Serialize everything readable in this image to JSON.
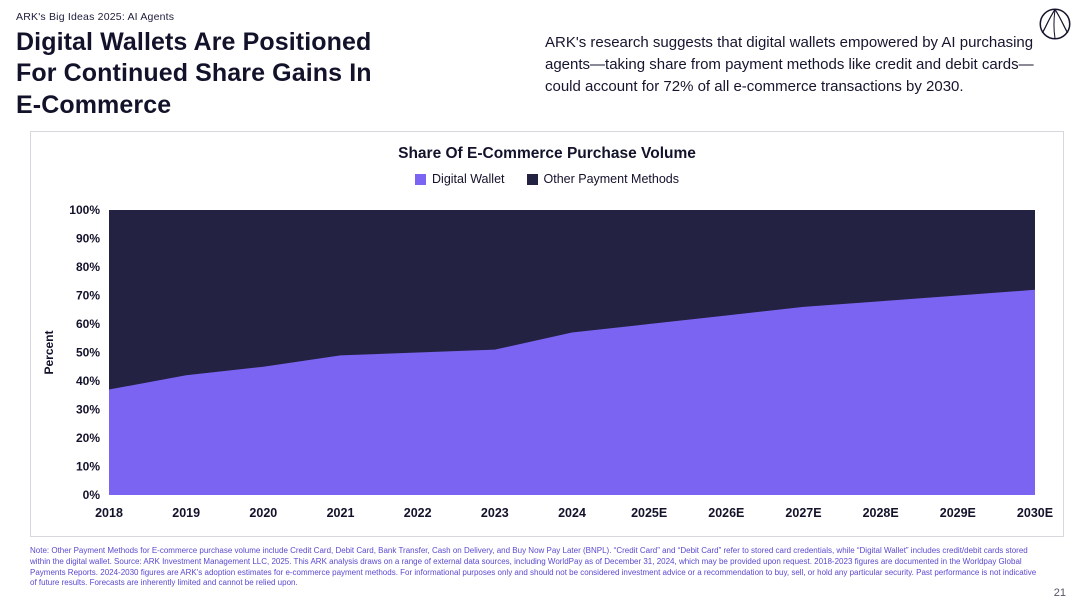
{
  "header": {
    "eyebrow": "ARK's Big Ideas 2025: AI Agents",
    "title_lines": {
      "0": "Digital Wallets Are Positioned",
      "1": "For Continued Share Gains In",
      "2": "E-Commerce"
    },
    "summary": "ARK's research suggests that digital wallets empowered by AI purchasing agents—taking share from payment methods like credit and debit cards—could account for 72% of all e-commerce transactions by 2030."
  },
  "chart_card": {
    "title": "Share Of E-Commerce Purchase Volume",
    "legend": {
      "0": {
        "label": "Digital Wallet",
        "color": "#7c64f2"
      },
      "1": {
        "label": "Other Payment Methods",
        "color": "#232243"
      }
    }
  },
  "chart_data": {
    "type": "area",
    "stacked": true,
    "title": "Share Of E-Commerce Purchase Volume",
    "x": [
      "2018",
      "2019",
      "2020",
      "2021",
      "2022",
      "2023",
      "2024",
      "2025E",
      "2026E",
      "2027E",
      "2028E",
      "2029E",
      "2030E"
    ],
    "series": [
      {
        "name": "Digital Wallet",
        "color": "#7c64f2",
        "values": [
          37,
          42,
          45,
          49,
          50,
          51,
          57,
          60,
          63,
          66,
          68,
          70,
          72
        ]
      },
      {
        "name": "Other Payment Methods",
        "color": "#232243",
        "values": [
          63,
          58,
          55,
          51,
          50,
          49,
          43,
          40,
          37,
          34,
          32,
          30,
          28
        ]
      }
    ],
    "xlabel": "",
    "ylabel": "Percent",
    "ylim": [
      0,
      100
    ],
    "ytick_step": 10,
    "yticks": [
      "0%",
      "10%",
      "20%",
      "30%",
      "40%",
      "50%",
      "60%",
      "70%",
      "80%",
      "90%",
      "100%"
    ],
    "grid": false,
    "legend_position": "top"
  },
  "footer": {
    "note": "Note: Other Payment Methods for E-commerce purchase volume include Credit Card, Debit Card, Bank Transfer, Cash on Delivery, and Buy Now Pay Later (BNPL). “Credit Card” and “Debit Card” refer to stored card credentials, while “Digital Wallet” includes credit/debit cards stored within the digital wallet. Source: ARK Investment Management LLC, 2025. This ARK analysis draws on a range of external data sources, including WorldPay as of December 31, 2024, which may be provided upon request. 2018-2023 figures are documented in the Worldpay Global Payments Reports. 2024-2030 figures are ARK's adoption estimates for e-commerce payment methods. For informational purposes only and should not be considered investment advice or a recommendation to buy, sell, or hold any particular security. Past performance is not indicative of future results. Forecasts are inherently limited and cannot be relied upon.",
    "page_number": "21"
  },
  "colors": {
    "digital_wallet": "#7c64f2",
    "other_payment_methods": "#232243",
    "heading_navy": "#13122b",
    "note_purple": "#5a49cf"
  }
}
